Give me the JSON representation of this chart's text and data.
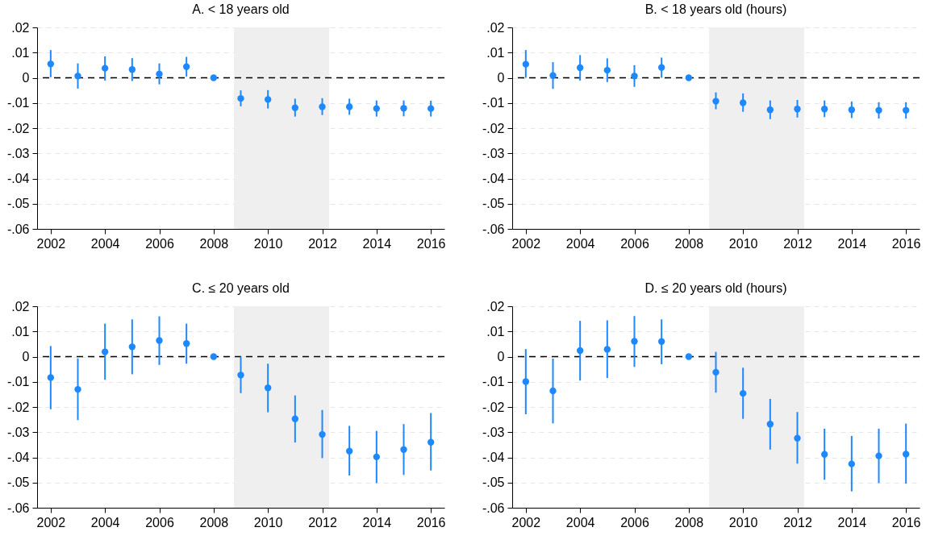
{
  "chart_data": [
    {
      "type": "scatter",
      "title": "A. < 18 years old",
      "x": [
        2002,
        2003,
        2004,
        2005,
        2006,
        2007,
        2008,
        2009,
        2010,
        2011,
        2012,
        2013,
        2014,
        2015,
        2016
      ],
      "color": "#1e88ff",
      "marker": "circle",
      "grid": "y",
      "values": [
        0.0055,
        0.0007,
        0.0038,
        0.0033,
        0.0015,
        0.0044,
        0,
        -0.0082,
        -0.0086,
        -0.0119,
        -0.0115,
        -0.0115,
        -0.0122,
        -0.0121,
        -0.0122
      ],
      "errors": [
        [
          0.0002,
          0.011
        ],
        [
          -0.0043,
          0.0057
        ],
        [
          -0.0011,
          0.0085
        ],
        [
          -0.0013,
          0.0078
        ],
        [
          -0.0026,
          0.0057
        ],
        [
          0.0005,
          0.0083
        ],
        null,
        [
          -0.0113,
          -0.005
        ],
        [
          -0.0122,
          -0.0049
        ],
        [
          -0.0154,
          -0.0083
        ],
        [
          -0.0148,
          -0.0081
        ],
        [
          -0.0147,
          -0.0083
        ],
        [
          -0.0154,
          -0.009
        ],
        [
          -0.0153,
          -0.009
        ],
        [
          -0.0154,
          -0.0091
        ]
      ],
      "xlim": [
        2001.5,
        2016.5
      ],
      "xticks": [
        2002,
        2004,
        2006,
        2008,
        2010,
        2012,
        2014,
        2016
      ],
      "ylim": [
        -0.06,
        0.02
      ],
      "yticks": [
        {
          "value": 0.02,
          "label": ".02"
        },
        {
          "value": 0.01,
          "label": ".01"
        },
        {
          "value": 0,
          "label": "0"
        },
        {
          "value": -0.01,
          "label": "-.01"
        },
        {
          "value": -0.02,
          "label": "-.02"
        },
        {
          "value": -0.03,
          "label": "-.03"
        },
        {
          "value": -0.04,
          "label": "-.04"
        },
        {
          "value": -0.05,
          "label": "-.05"
        },
        {
          "value": -0.06,
          "label": "-.06"
        }
      ],
      "ref_lines": [
        {
          "axis": "y",
          "value": 0,
          "color": "#000000",
          "line_style": "dashed"
        }
      ],
      "bands": [
        {
          "axis": "x",
          "from": 2008.75,
          "to": 2012.25,
          "color": "#efefef"
        }
      ]
    },
    {
      "type": "scatter",
      "title": "B. < 18 years old (hours)",
      "x": [
        2002,
        2003,
        2004,
        2005,
        2006,
        2007,
        2008,
        2009,
        2010,
        2011,
        2012,
        2013,
        2014,
        2015,
        2016
      ],
      "color": "#1e88ff",
      "marker": "circle",
      "grid": "y",
      "values": [
        0.0054,
        0.0009,
        0.004,
        0.003,
        0.0007,
        0.0041,
        0,
        -0.0093,
        -0.0099,
        -0.0127,
        -0.0124,
        -0.0124,
        -0.0127,
        -0.0129,
        -0.0129
      ],
      "errors": [
        [
          0,
          0.011
        ],
        [
          -0.0044,
          0.0062
        ],
        [
          -0.0011,
          0.009
        ],
        [
          -0.0017,
          0.0077
        ],
        [
          -0.0036,
          0.005
        ],
        [
          0,
          0.008
        ],
        null,
        [
          -0.0125,
          -0.0058
        ],
        [
          -0.0135,
          -0.0062
        ],
        [
          -0.0164,
          -0.009
        ],
        [
          -0.0158,
          -0.0088
        ],
        [
          -0.0156,
          -0.009
        ],
        [
          -0.016,
          -0.0094
        ],
        [
          -0.0162,
          -0.0097
        ],
        [
          -0.0162,
          -0.0097
        ]
      ],
      "xlim": [
        2001.5,
        2016.5
      ],
      "xticks": [
        2002,
        2004,
        2006,
        2008,
        2010,
        2012,
        2014,
        2016
      ],
      "ylim": [
        -0.06,
        0.02
      ],
      "yticks": [
        {
          "value": 0.02,
          "label": ".02"
        },
        {
          "value": 0.01,
          "label": ".01"
        },
        {
          "value": 0,
          "label": "0"
        },
        {
          "value": -0.01,
          "label": "-.01"
        },
        {
          "value": -0.02,
          "label": "-.02"
        },
        {
          "value": -0.03,
          "label": "-.03"
        },
        {
          "value": -0.04,
          "label": "-.04"
        },
        {
          "value": -0.05,
          "label": "-.05"
        },
        {
          "value": -0.06,
          "label": "-.06"
        }
      ],
      "ref_lines": [
        {
          "axis": "y",
          "value": 0,
          "color": "#000000",
          "line_style": "dashed"
        }
      ],
      "bands": [
        {
          "axis": "x",
          "from": 2008.75,
          "to": 2012.25,
          "color": "#efefef"
        }
      ]
    },
    {
      "type": "scatter",
      "title": "C. ≤ 20 years old",
      "x": [
        2002,
        2003,
        2004,
        2005,
        2006,
        2007,
        2008,
        2009,
        2010,
        2011,
        2012,
        2013,
        2014,
        2015,
        2016
      ],
      "color": "#1e88ff",
      "marker": "circle",
      "grid": "y",
      "values": [
        -0.0083,
        -0.013,
        0.0019,
        0.0039,
        0.0064,
        0.0052,
        0,
        -0.0073,
        -0.0124,
        -0.0247,
        -0.0309,
        -0.0375,
        -0.0398,
        -0.0369,
        -0.034
      ],
      "errors": [
        [
          -0.0209,
          0.0042
        ],
        [
          -0.0252,
          -0.0007
        ],
        [
          -0.0092,
          0.0131
        ],
        [
          -0.007,
          0.0148
        ],
        [
          -0.0033,
          0.016
        ],
        [
          -0.0028,
          0.0131
        ],
        null,
        [
          -0.0145,
          0
        ],
        [
          -0.0221,
          -0.0028
        ],
        [
          -0.0341,
          -0.0154
        ],
        [
          -0.0403,
          -0.0212
        ],
        [
          -0.0472,
          -0.0275
        ],
        [
          -0.0502,
          -0.0295
        ],
        [
          -0.047,
          -0.0268
        ],
        [
          -0.0452,
          -0.0224
        ]
      ],
      "xlim": [
        2001.5,
        2016.5
      ],
      "xticks": [
        2002,
        2004,
        2006,
        2008,
        2010,
        2012,
        2014,
        2016
      ],
      "ylim": [
        -0.06,
        0.02
      ],
      "yticks": [
        {
          "value": 0.02,
          "label": ".02"
        },
        {
          "value": 0.01,
          "label": ".01"
        },
        {
          "value": 0,
          "label": "0"
        },
        {
          "value": -0.01,
          "label": "-.01"
        },
        {
          "value": -0.02,
          "label": "-.02"
        },
        {
          "value": -0.03,
          "label": "-.03"
        },
        {
          "value": -0.04,
          "label": "-.04"
        },
        {
          "value": -0.05,
          "label": "-.05"
        },
        {
          "value": -0.06,
          "label": "-.06"
        }
      ],
      "ref_lines": [
        {
          "axis": "y",
          "value": 0,
          "color": "#000000",
          "line_style": "dashed"
        }
      ],
      "bands": [
        {
          "axis": "x",
          "from": 2008.75,
          "to": 2012.25,
          "color": "#efefef"
        }
      ]
    },
    {
      "type": "scatter",
      "title": "D. ≤ 20 years old (hours)",
      "x": [
        2002,
        2003,
        2004,
        2005,
        2006,
        2007,
        2008,
        2009,
        2010,
        2011,
        2012,
        2013,
        2014,
        2015,
        2016
      ],
      "color": "#1e88ff",
      "marker": "circle",
      "grid": "y",
      "values": [
        -0.0099,
        -0.0136,
        0.0024,
        0.0029,
        0.0061,
        0.006,
        0,
        -0.0062,
        -0.0146,
        -0.0268,
        -0.0324,
        -0.0388,
        -0.0426,
        -0.0394,
        -0.0387
      ],
      "errors": [
        [
          -0.0229,
          0.003
        ],
        [
          -0.0265,
          -0.0008
        ],
        [
          -0.0095,
          0.0142
        ],
        [
          -0.0085,
          0.0144
        ],
        [
          -0.0041,
          0.0161
        ],
        [
          -0.003,
          0.0148
        ],
        null,
        [
          -0.0143,
          0.0019
        ],
        [
          -0.0247,
          -0.0044
        ],
        [
          -0.0369,
          -0.0168
        ],
        [
          -0.0425,
          -0.022
        ],
        [
          -0.0489,
          -0.0286
        ],
        [
          -0.0535,
          -0.0315
        ],
        [
          -0.0502,
          -0.0286
        ],
        [
          -0.0504,
          -0.0266
        ]
      ],
      "xlim": [
        2001.5,
        2016.5
      ],
      "xticks": [
        2002,
        2004,
        2006,
        2008,
        2010,
        2012,
        2014,
        2016
      ],
      "ylim": [
        -0.06,
        0.02
      ],
      "yticks": [
        {
          "value": 0.02,
          "label": ".02"
        },
        {
          "value": 0.01,
          "label": ".01"
        },
        {
          "value": 0,
          "label": "0"
        },
        {
          "value": -0.01,
          "label": "-.01"
        },
        {
          "value": -0.02,
          "label": "-.02"
        },
        {
          "value": -0.03,
          "label": "-.03"
        },
        {
          "value": -0.04,
          "label": "-.04"
        },
        {
          "value": -0.05,
          "label": "-.05"
        },
        {
          "value": -0.06,
          "label": "-.06"
        }
      ],
      "ref_lines": [
        {
          "axis": "y",
          "value": 0,
          "color": "#000000",
          "line_style": "dashed"
        }
      ],
      "bands": [
        {
          "axis": "x",
          "from": 2008.75,
          "to": 2012.25,
          "color": "#efefef"
        }
      ]
    }
  ]
}
